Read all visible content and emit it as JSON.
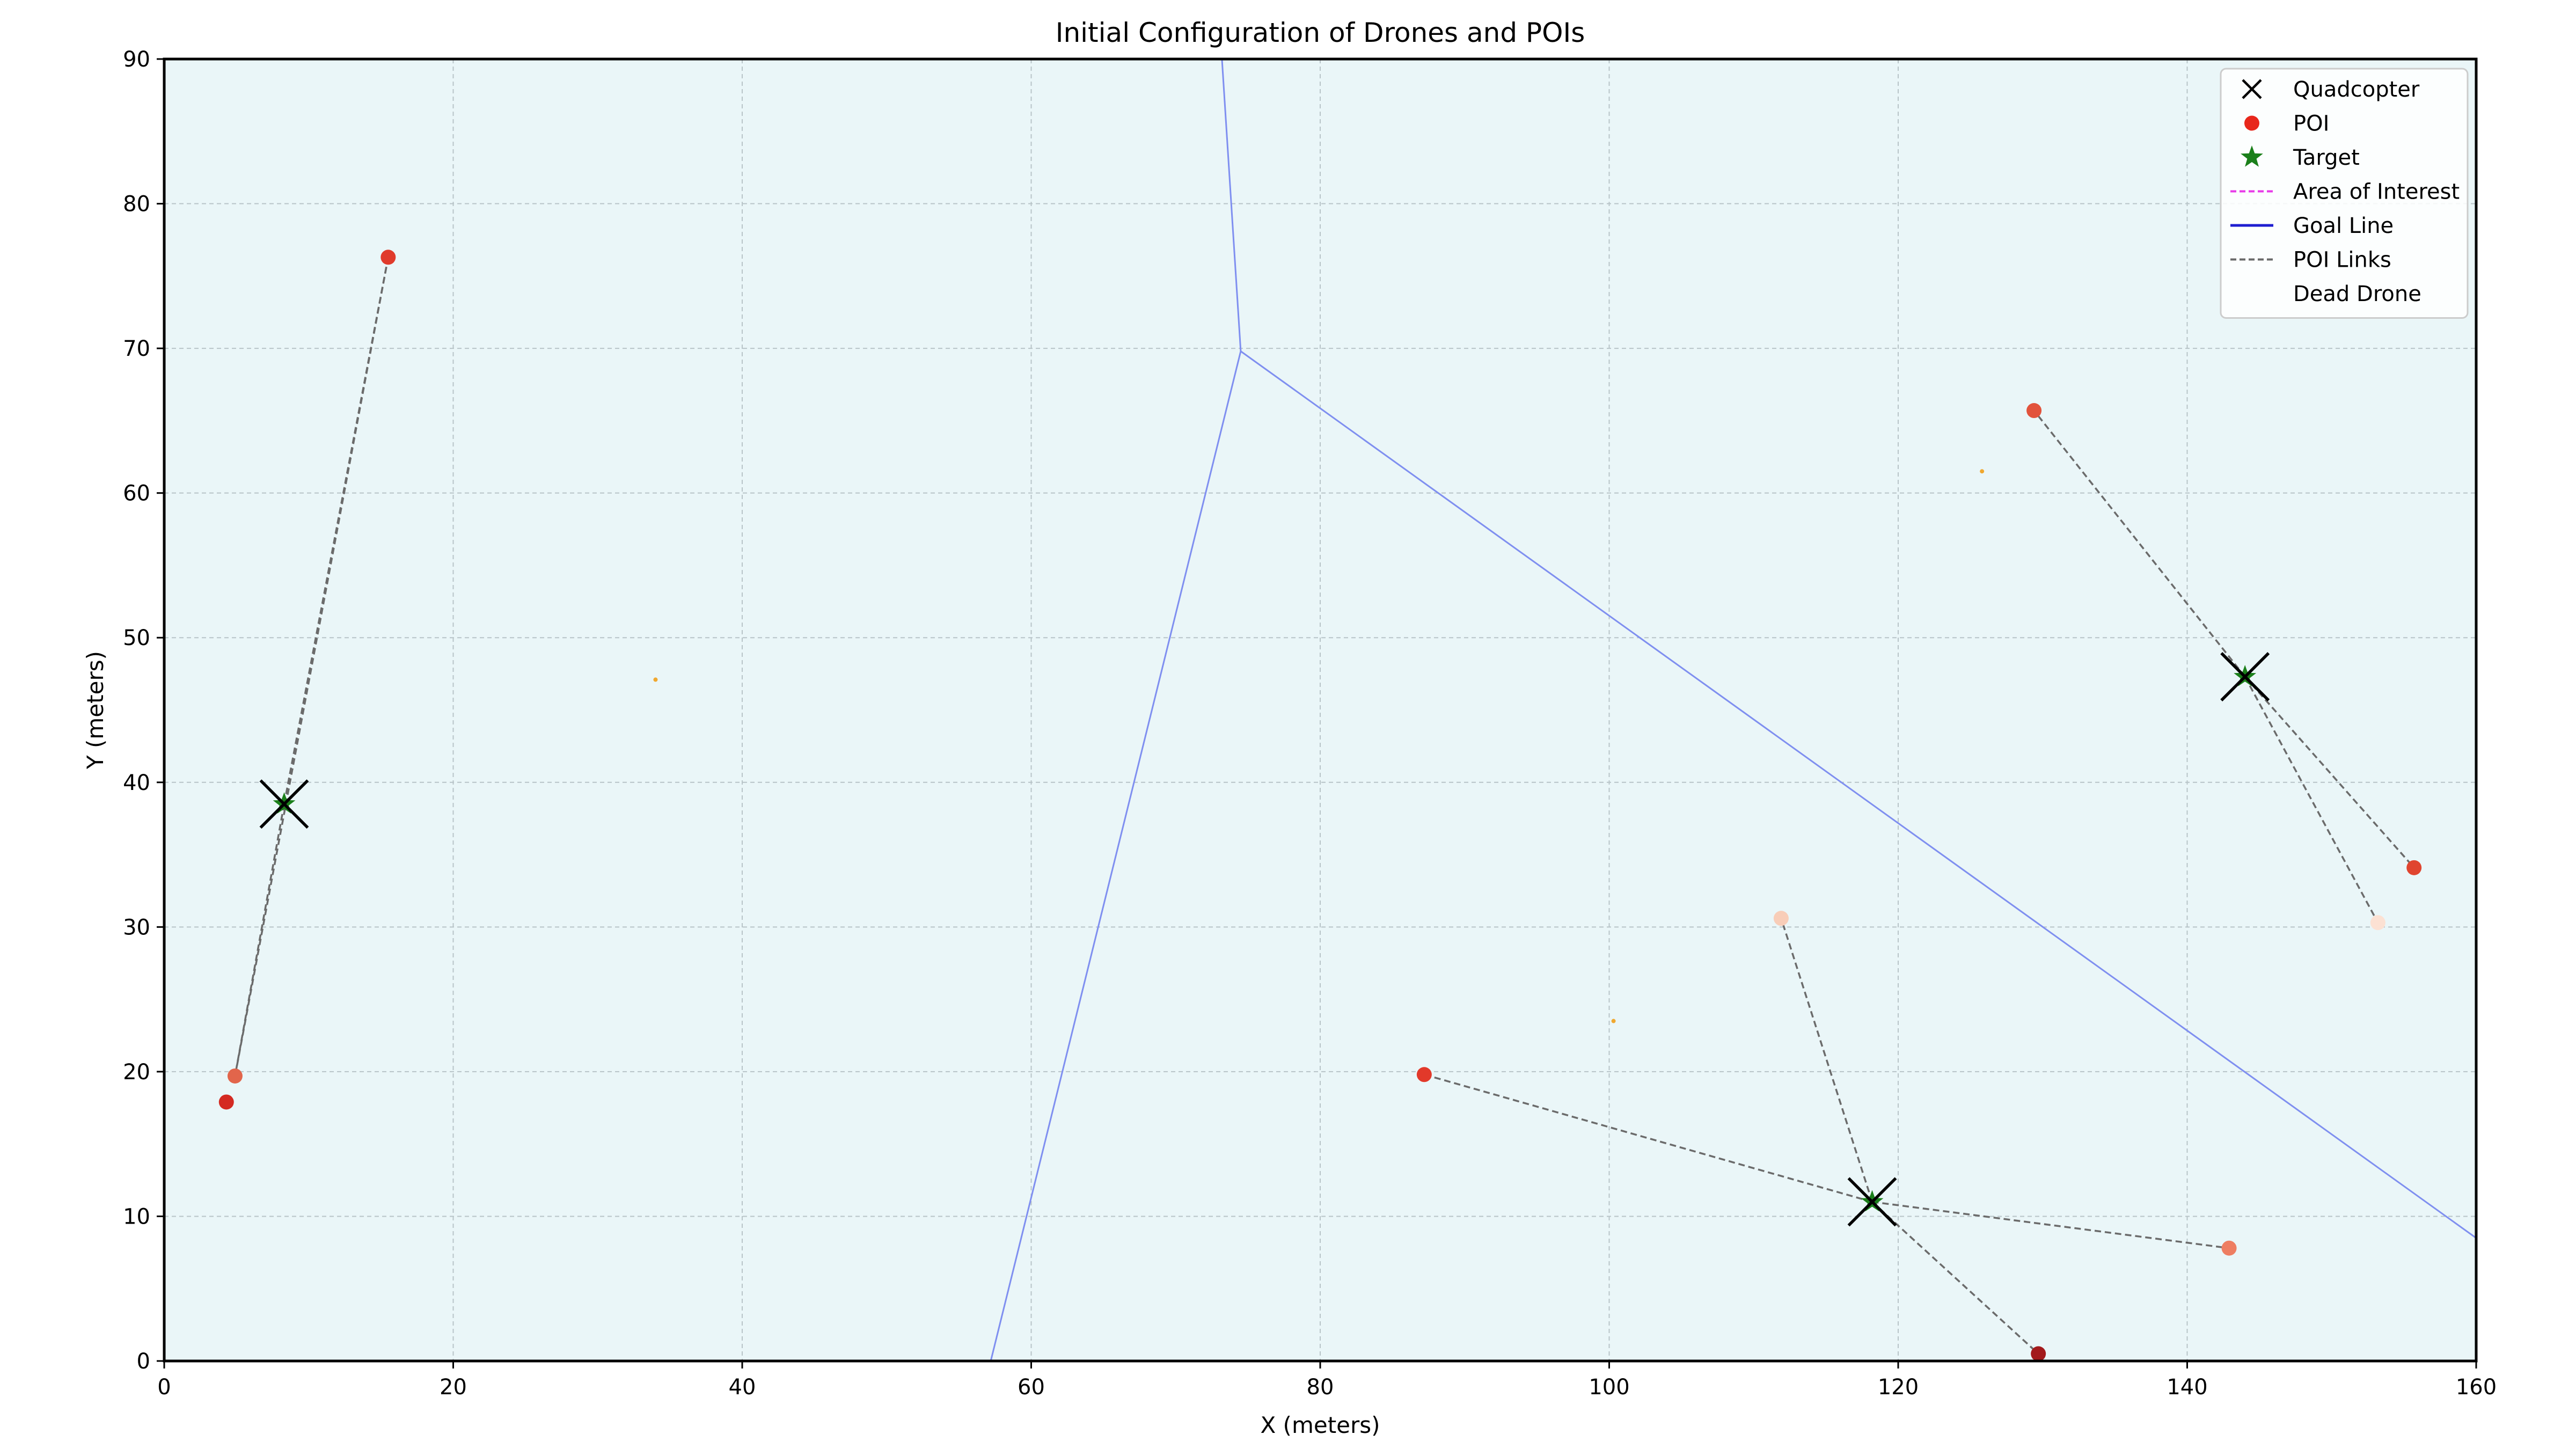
{
  "chart_data": {
    "type": "scatter",
    "title": "Initial Configuration of Drones and POIs",
    "xlabel": "X (meters)",
    "ylabel": "Y (meters)",
    "xlim": [
      0,
      160
    ],
    "ylim": [
      0,
      90
    ],
    "xticks": [
      0,
      20,
      40,
      60,
      80,
      100,
      120,
      140,
      160
    ],
    "yticks": [
      0,
      10,
      20,
      30,
      40,
      50,
      60,
      70,
      80,
      90
    ],
    "grid": true,
    "legend_position": "top-right",
    "legend": [
      {
        "label": "Quadcopter",
        "marker": "x",
        "color": "#000000"
      },
      {
        "label": "POI",
        "marker": "circle",
        "color": "#e8271b"
      },
      {
        "label": "Target",
        "marker": "star",
        "color": "#1a7f1a"
      },
      {
        "label": "Area of Interest",
        "marker": "dashed-line",
        "color": "#e83be8"
      },
      {
        "label": "Goal Line",
        "marker": "line",
        "color": "#1f1fd0"
      },
      {
        "label": "POI Links",
        "marker": "dashed-line",
        "color": "#6b6b6b"
      },
      {
        "label": "Dead Drone",
        "marker": "none",
        "color": "#ffffff"
      }
    ],
    "quadcopters": [
      {
        "x": 8.3,
        "y": 38.5
      },
      {
        "x": 118.2,
        "y": 11.0
      },
      {
        "x": 144.0,
        "y": 47.3
      }
    ],
    "targets": [
      {
        "x": 8.3,
        "y": 38.5
      },
      {
        "x": 118.2,
        "y": 11.0
      },
      {
        "x": 144.0,
        "y": 47.3
      }
    ],
    "pois": [
      {
        "x": 15.5,
        "y": 76.3,
        "color": "#e03b2c"
      },
      {
        "x": 4.9,
        "y": 19.7,
        "color": "#e2654b"
      },
      {
        "x": 4.3,
        "y": 17.9,
        "color": "#d42a22"
      },
      {
        "x": 87.2,
        "y": 19.8,
        "color": "#e2392a"
      },
      {
        "x": 111.9,
        "y": 30.6,
        "color": "#f8cdb8"
      },
      {
        "x": 142.9,
        "y": 7.8,
        "color": "#ee7e62"
      },
      {
        "x": 129.7,
        "y": 0.5,
        "color": "#a31a1c"
      },
      {
        "x": 129.4,
        "y": 65.7,
        "color": "#e2533c"
      },
      {
        "x": 155.7,
        "y": 34.1,
        "color": "#e0452f"
      },
      {
        "x": 153.2,
        "y": 30.3,
        "color": "#fce1d3"
      }
    ],
    "poi_links": [
      {
        "from": [
          8.3,
          38.5
        ],
        "to": [
          15.5,
          76.3
        ]
      },
      {
        "from": [
          8.3,
          38.5
        ],
        "to": [
          4.9,
          19.7
        ]
      },
      {
        "from": [
          15.5,
          76.3
        ],
        "to": [
          4.9,
          19.7
        ]
      },
      {
        "from": [
          118.2,
          11.0
        ],
        "to": [
          87.2,
          19.8
        ]
      },
      {
        "from": [
          118.2,
          11.0
        ],
        "to": [
          111.9,
          30.6
        ]
      },
      {
        "from": [
          118.2,
          11.0
        ],
        "to": [
          142.9,
          7.8
        ]
      },
      {
        "from": [
          118.2,
          11.0
        ],
        "to": [
          129.7,
          0.5
        ]
      },
      {
        "from": [
          144.0,
          47.3
        ],
        "to": [
          129.4,
          65.7
        ]
      },
      {
        "from": [
          144.0,
          47.3
        ],
        "to": [
          155.7,
          34.1
        ]
      },
      {
        "from": [
          144.0,
          47.3
        ],
        "to": [
          153.2,
          30.3
        ]
      }
    ],
    "voronoi_edges": [
      [
        [
          73.2,
          90.0
        ],
        [
          74.5,
          69.8
        ]
      ],
      [
        [
          74.5,
          69.8
        ],
        [
          57.2,
          0.0
        ]
      ],
      [
        [
          74.5,
          69.8
        ],
        [
          160.0,
          8.5
        ]
      ]
    ],
    "small_markers": [
      {
        "x": 34.0,
        "y": 47.1
      },
      {
        "x": 100.3,
        "y": 23.5
      },
      {
        "x": 125.8,
        "y": 61.5
      }
    ],
    "colors": {
      "plot_background": "#eaf6f8",
      "grid": "#b8c4c8",
      "voronoi": "#7f8ff0",
      "links": "#6b6b6b",
      "quadcopter": "#000000",
      "target": "#1a7f1a",
      "small_marker": "#f0a830"
    }
  }
}
